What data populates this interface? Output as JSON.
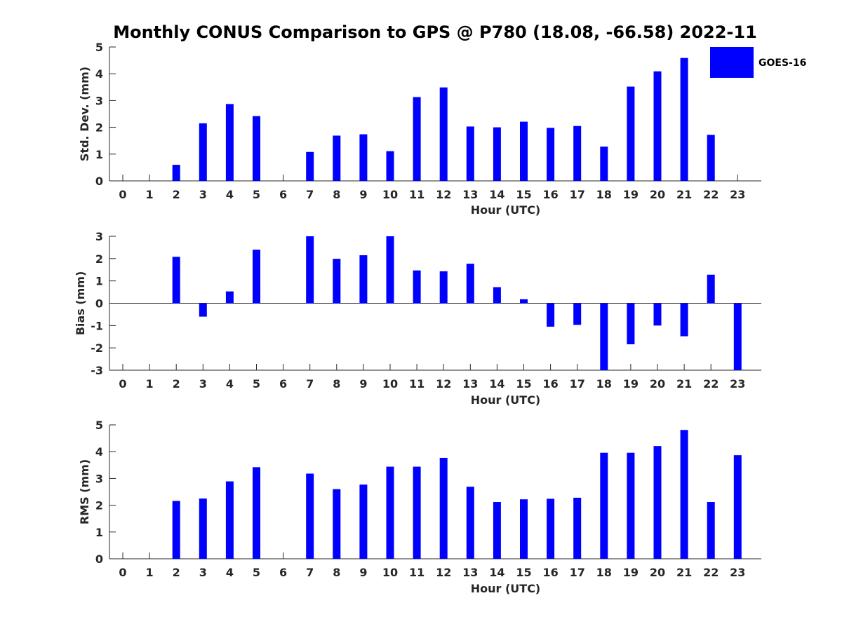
{
  "title": "Monthly CONUS Comparison to GPS @ P780 (18.08, -66.58) 2022-11",
  "legend": {
    "label": "GOES-16",
    "color": "#0000ff"
  },
  "chart_data": [
    {
      "type": "bar",
      "categories": [
        "0",
        "1",
        "2",
        "3",
        "4",
        "5",
        "6",
        "7",
        "8",
        "9",
        "10",
        "11",
        "12",
        "13",
        "14",
        "15",
        "16",
        "17",
        "18",
        "19",
        "20",
        "21",
        "22",
        "23"
      ],
      "series": [
        {
          "name": "GOES-16",
          "values": [
            null,
            null,
            0.6,
            2.15,
            2.87,
            2.42,
            null,
            1.08,
            1.69,
            1.74,
            1.11,
            3.13,
            3.49,
            2.03,
            2.0,
            2.21,
            1.98,
            2.05,
            1.28,
            3.52,
            4.09,
            4.59,
            1.72,
            null
          ]
        }
      ],
      "xlabel": "Hour (UTC)",
      "ylabel": "Std. Dev. (mm)",
      "ylim": [
        0,
        5
      ],
      "yticks": [
        "0",
        "1",
        "2",
        "3",
        "4",
        "5"
      ],
      "grid": false,
      "legend_position": "top-right"
    },
    {
      "type": "bar",
      "categories": [
        "0",
        "1",
        "2",
        "3",
        "4",
        "5",
        "6",
        "7",
        "8",
        "9",
        "10",
        "11",
        "12",
        "13",
        "14",
        "15",
        "16",
        "17",
        "18",
        "19",
        "20",
        "21",
        "22",
        "23"
      ],
      "series": [
        {
          "name": "GOES-16",
          "values": [
            null,
            null,
            2.08,
            -0.6,
            0.53,
            2.4,
            null,
            3.0,
            1.99,
            2.15,
            3.0,
            1.47,
            1.43,
            1.77,
            0.72,
            0.18,
            -1.05,
            -0.97,
            -3.0,
            -1.84,
            -1.0,
            -1.48,
            1.28,
            -3.0
          ]
        }
      ],
      "xlabel": "Hour (UTC)",
      "ylabel": "Bias (mm)",
      "ylim": [
        -3,
        3
      ],
      "yticks": [
        "-3",
        "-2",
        "-1",
        "0",
        "1",
        "2",
        "3"
      ],
      "grid": false
    },
    {
      "type": "bar",
      "categories": [
        "0",
        "1",
        "2",
        "3",
        "4",
        "5",
        "6",
        "7",
        "8",
        "9",
        "10",
        "11",
        "12",
        "13",
        "14",
        "15",
        "16",
        "17",
        "18",
        "19",
        "20",
        "21",
        "22",
        "23"
      ],
      "series": [
        {
          "name": "GOES-16",
          "values": [
            null,
            null,
            2.16,
            2.25,
            2.89,
            3.42,
            null,
            3.18,
            2.6,
            2.77,
            3.44,
            3.44,
            3.77,
            2.69,
            2.12,
            2.22,
            2.24,
            2.28,
            3.96,
            3.96,
            4.21,
            4.81,
            2.12,
            3.87
          ]
        }
      ],
      "xlabel": "Hour (UTC)",
      "ylabel": "RMS (mm)",
      "ylim": [
        0,
        5
      ],
      "yticks": [
        "0",
        "1",
        "2",
        "3",
        "4",
        "5"
      ],
      "grid": false
    }
  ]
}
